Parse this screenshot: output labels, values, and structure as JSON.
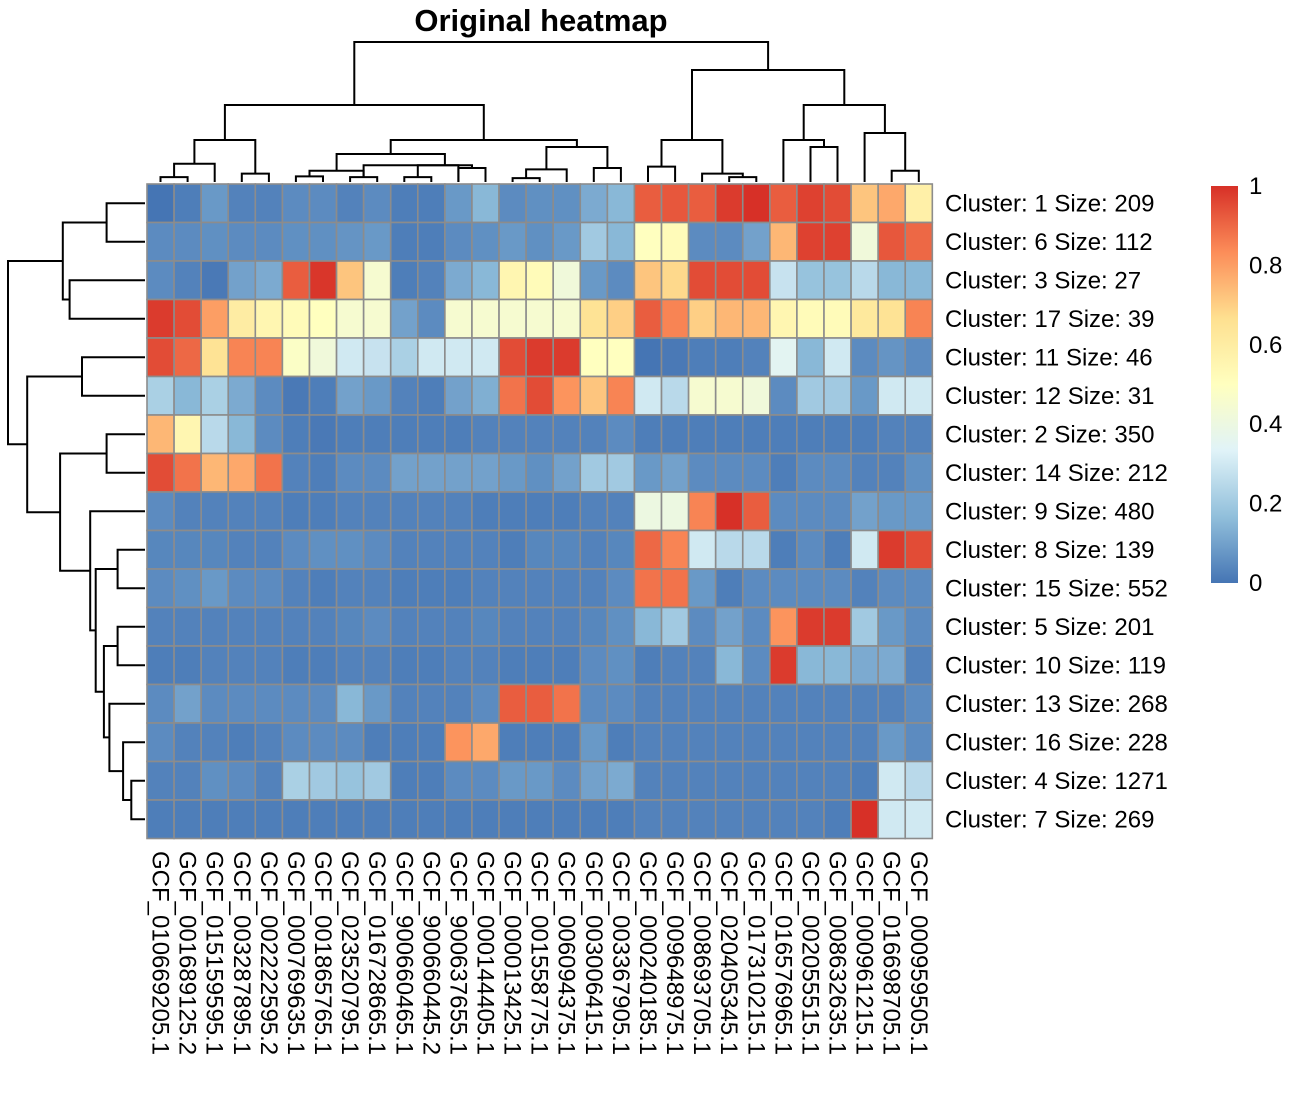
{
  "chart_data": {
    "type": "heatmap",
    "title": "Original heatmap",
    "rows": [
      "Cluster: 1 Size: 209",
      "Cluster: 6 Size: 112",
      "Cluster: 3 Size: 27",
      "Cluster: 17 Size: 39",
      "Cluster: 11 Size: 46",
      "Cluster: 12 Size: 31",
      "Cluster: 2 Size: 350",
      "Cluster: 14 Size: 212",
      "Cluster: 9 Size: 480",
      "Cluster: 8 Size: 139",
      "Cluster: 15 Size: 552",
      "Cluster: 5 Size: 201",
      "Cluster: 10 Size: 119",
      "Cluster: 13 Size: 268",
      "Cluster: 16 Size: 228",
      "Cluster: 4 Size: 1271",
      "Cluster: 7 Size: 269"
    ],
    "columns": [
      "GCF_010669205.1",
      "GCF_001689125.2",
      "GCF_015159595.1",
      "GCF_003287895.1",
      "GCF_002222595.2",
      "GCF_000769635.1",
      "GCF_001865765.1",
      "GCF_023520795.1",
      "GCF_016728665.1",
      "GCF_900660465.1",
      "GCF_900660445.2",
      "GCF_900637655.1",
      "GCF_000144405.1",
      "GCF_000013425.1",
      "GCF_001558775.1",
      "GCF_006094375.1",
      "GCF_003006415.1",
      "GCF_003367905.1",
      "GCF_000240185.1",
      "GCF_009648975.1",
      "GCF_008693705.1",
      "GCF_020405345.1",
      "GCF_017310215.1",
      "GCF_016576965.1",
      "GCF_002055515.1",
      "GCF_008632635.1",
      "GCF_000961215.1",
      "GCF_016698705.1",
      "GCF_000959505.1"
    ],
    "values": [
      [
        0,
        0.02,
        0.08,
        0.03,
        0.03,
        0.05,
        0.05,
        0.03,
        0.05,
        0.02,
        0.02,
        0.08,
        0.15,
        0.05,
        0.06,
        0.06,
        0.12,
        0.15,
        0.92,
        0.93,
        0.92,
        0.98,
        1.0,
        0.92,
        0.97,
        0.95,
        0.72,
        0.78,
        0.58
      ],
      [
        0.05,
        0.05,
        0.06,
        0.05,
        0.05,
        0.06,
        0.06,
        0.07,
        0.08,
        0.02,
        0.02,
        0.05,
        0.06,
        0.08,
        0.06,
        0.08,
        0.2,
        0.15,
        0.5,
        0.52,
        0.05,
        0.05,
        0.1,
        0.75,
        0.97,
        0.97,
        0.42,
        0.93,
        0.9
      ],
      [
        0.05,
        0.03,
        0.01,
        0.1,
        0.12,
        0.92,
        0.99,
        0.72,
        0.45,
        0.02,
        0.03,
        0.12,
        0.15,
        0.55,
        0.52,
        0.42,
        0.08,
        0.05,
        0.72,
        0.68,
        0.95,
        0.95,
        0.95,
        0.28,
        0.18,
        0.18,
        0.25,
        0.15,
        0.15
      ],
      [
        0.98,
        0.95,
        0.8,
        0.6,
        0.55,
        0.52,
        0.5,
        0.45,
        0.45,
        0.1,
        0.05,
        0.45,
        0.45,
        0.45,
        0.45,
        0.45,
        0.65,
        0.7,
        0.92,
        0.85,
        0.7,
        0.75,
        0.75,
        0.55,
        0.52,
        0.52,
        0.62,
        0.65,
        0.85
      ],
      [
        0.95,
        0.9,
        0.65,
        0.85,
        0.85,
        0.48,
        0.42,
        0.3,
        0.28,
        0.22,
        0.3,
        0.3,
        0.3,
        0.95,
        0.98,
        0.98,
        0.5,
        0.5,
        0.0,
        0.01,
        0.02,
        0.02,
        0.03,
        0.35,
        0.15,
        0.3,
        0.05,
        0.07,
        0.05
      ],
      [
        0.22,
        0.15,
        0.22,
        0.12,
        0.05,
        0.01,
        0.02,
        0.1,
        0.08,
        0.03,
        0.02,
        0.1,
        0.13,
        0.88,
        0.95,
        0.82,
        0.72,
        0.85,
        0.3,
        0.25,
        0.45,
        0.45,
        0.42,
        0.05,
        0.2,
        0.2,
        0.08,
        0.3,
        0.3
      ],
      [
        0.75,
        0.55,
        0.25,
        0.15,
        0.05,
        0.02,
        0.01,
        0.02,
        0.02,
        0.02,
        0.02,
        0.02,
        0.03,
        0.03,
        0.03,
        0.03,
        0.03,
        0.05,
        0.02,
        0.02,
        0.02,
        0.02,
        0.02,
        0.02,
        0.02,
        0.02,
        0.02,
        0.03,
        0.03
      ],
      [
        0.95,
        0.88,
        0.75,
        0.78,
        0.88,
        0.03,
        0.02,
        0.05,
        0.05,
        0.1,
        0.1,
        0.1,
        0.1,
        0.08,
        0.06,
        0.1,
        0.2,
        0.2,
        0.08,
        0.1,
        0.05,
        0.05,
        0.05,
        0.02,
        0.05,
        0.05,
        0.03,
        0.03,
        0.06
      ],
      [
        0.05,
        0.03,
        0.03,
        0.03,
        0.03,
        0.02,
        0.02,
        0.03,
        0.03,
        0.03,
        0.03,
        0.03,
        0.02,
        0.02,
        0.02,
        0.02,
        0.03,
        0.03,
        0.4,
        0.4,
        0.85,
        1.0,
        0.92,
        0.05,
        0.05,
        0.05,
        0.1,
        0.08,
        0.08
      ],
      [
        0.04,
        0.04,
        0.04,
        0.03,
        0.03,
        0.05,
        0.06,
        0.06,
        0.05,
        0.03,
        0.03,
        0.03,
        0.03,
        0.02,
        0.04,
        0.04,
        0.03,
        0.04,
        0.9,
        0.85,
        0.3,
        0.25,
        0.25,
        0.02,
        0.05,
        0.02,
        0.3,
        0.98,
        0.95
      ],
      [
        0.05,
        0.06,
        0.08,
        0.05,
        0.05,
        0.03,
        0.02,
        0.03,
        0.03,
        0.02,
        0.02,
        0.02,
        0.03,
        0.03,
        0.03,
        0.03,
        0.03,
        0.05,
        0.88,
        0.88,
        0.08,
        0.02,
        0.05,
        0.05,
        0.05,
        0.05,
        0.03,
        0.05,
        0.05
      ],
      [
        0.03,
        0.03,
        0.03,
        0.03,
        0.03,
        0.03,
        0.03,
        0.04,
        0.05,
        0.03,
        0.03,
        0.03,
        0.04,
        0.03,
        0.03,
        0.03,
        0.04,
        0.06,
        0.15,
        0.2,
        0.05,
        0.1,
        0.05,
        0.82,
        0.98,
        0.98,
        0.2,
        0.08,
        0.05
      ],
      [
        0.02,
        0.02,
        0.03,
        0.03,
        0.03,
        0.02,
        0.02,
        0.03,
        0.03,
        0.02,
        0.02,
        0.03,
        0.03,
        0.02,
        0.02,
        0.02,
        0.05,
        0.06,
        0.02,
        0.03,
        0.03,
        0.15,
        0.05,
        0.98,
        0.15,
        0.15,
        0.12,
        0.12,
        0.03
      ],
      [
        0.05,
        0.1,
        0.05,
        0.05,
        0.05,
        0.05,
        0.05,
        0.15,
        0.08,
        0.03,
        0.03,
        0.03,
        0.05,
        0.92,
        0.92,
        0.88,
        0.05,
        0.05,
        0.03,
        0.03,
        0.03,
        0.03,
        0.03,
        0.03,
        0.03,
        0.03,
        0.03,
        0.03,
        0.05
      ],
      [
        0.05,
        0.03,
        0.03,
        0.02,
        0.03,
        0.05,
        0.05,
        0.05,
        0.02,
        0.02,
        0.02,
        0.82,
        0.78,
        0.02,
        0.02,
        0.02,
        0.08,
        0.02,
        0.03,
        0.03,
        0.03,
        0.03,
        0.03,
        0.03,
        0.03,
        0.03,
        0.03,
        0.08,
        0.05
      ],
      [
        0.03,
        0.03,
        0.06,
        0.05,
        0.03,
        0.22,
        0.2,
        0.18,
        0.2,
        0.02,
        0.02,
        0.05,
        0.05,
        0.08,
        0.08,
        0.05,
        0.1,
        0.12,
        0.03,
        0.03,
        0.03,
        0.03,
        0.03,
        0.03,
        0.03,
        0.03,
        0.02,
        0.3,
        0.25
      ],
      [
        0.02,
        0.02,
        0.02,
        0.02,
        0.02,
        0.02,
        0.02,
        0.02,
        0.02,
        0.02,
        0.02,
        0.02,
        0.02,
        0.02,
        0.02,
        0.02,
        0.02,
        0.02,
        0.03,
        0.03,
        0.03,
        0.03,
        0.03,
        0.03,
        0.03,
        0.02,
        1.0,
        0.3,
        0.3
      ]
    ],
    "colorscale": [
      "#4575B4",
      "#91BFDB",
      "#E0F3F8",
      "#FFFFBF",
      "#FEE090",
      "#FC8D59",
      "#D73027"
    ],
    "legend": {
      "placement": "right",
      "range": [
        0,
        1
      ],
      "ticks": [
        "0",
        "0.2",
        "0.4",
        "0.6",
        "0.8",
        "1"
      ]
    },
    "row_dendrogram": [
      [
        "L",
        0,
        1
      ],
      [
        "L",
        3,
        2
      ],
      [
        "N",
        1,
        0
      ],
      [
        "L",
        4,
        5
      ],
      [
        "L",
        6,
        7
      ],
      [
        "L",
        9,
        10
      ],
      [
        "L",
        11,
        12
      ],
      [
        "L",
        15,
        16
      ],
      [
        "N",
        5,
        8
      ],
      [
        "N",
        6,
        7
      ],
      [
        "L",
        14,
        9
      ],
      [
        "L",
        13,
        10
      ],
      [
        "N",
        8,
        11
      ],
      [
        "N",
        3,
        4
      ],
      [
        "N",
        2,
        13
      ],
      [
        "N",
        12,
        14
      ],
      [
        "N",
        15,
        0.5
      ]
    ],
    "row_dendrogram_heights": [
      0.28,
      0.27,
      0.55,
      0.46,
      0.28,
      0.2,
      0.2,
      0.1,
      0.26,
      0.3,
      0.16,
      0.26,
      0.36,
      0.62,
      0.86,
      0.78,
      1.0
    ],
    "col_dendrogram": [
      [
        "L",
        0,
        1
      ],
      [
        "L",
        3,
        4
      ],
      [
        "N",
        0,
        2
      ],
      [
        "N",
        1,
        2
      ],
      [
        "L",
        5,
        6
      ],
      [
        "L",
        7,
        8
      ],
      [
        "L",
        9,
        10
      ],
      [
        "N",
        6,
        11
      ],
      [
        "L",
        13,
        14
      ],
      [
        "N",
        8,
        15
      ],
      [
        "L",
        16,
        17
      ],
      [
        "N",
        9,
        10
      ],
      [
        "N",
        7,
        5
      ],
      [
        "N",
        12,
        11
      ],
      [
        "L",
        21,
        22
      ],
      [
        "L",
        20,
        14
      ],
      [
        "L",
        18,
        19
      ],
      [
        "N",
        16,
        15
      ],
      [
        "L",
        24,
        25
      ],
      [
        "N",
        18,
        23
      ],
      [
        "L",
        27,
        28
      ],
      [
        "N",
        20,
        26
      ],
      [
        "N",
        19,
        21
      ],
      [
        "N",
        17,
        22
      ],
      [
        "N",
        13,
        23
      ],
      [
        "N",
        3,
        4
      ]
    ],
    "col_dendrogram_heights": [
      0.035,
      0.06,
      0.13,
      0.3,
      0.04,
      0.035,
      0.035,
      0.12,
      0.28,
      0.4,
      0.1,
      0.15,
      0.24,
      0.55,
      0.035,
      0.04,
      0.11,
      0.21,
      0.25,
      0.29,
      0.08,
      0.35,
      0.55,
      0.64,
      0.8,
      1.0
    ]
  }
}
